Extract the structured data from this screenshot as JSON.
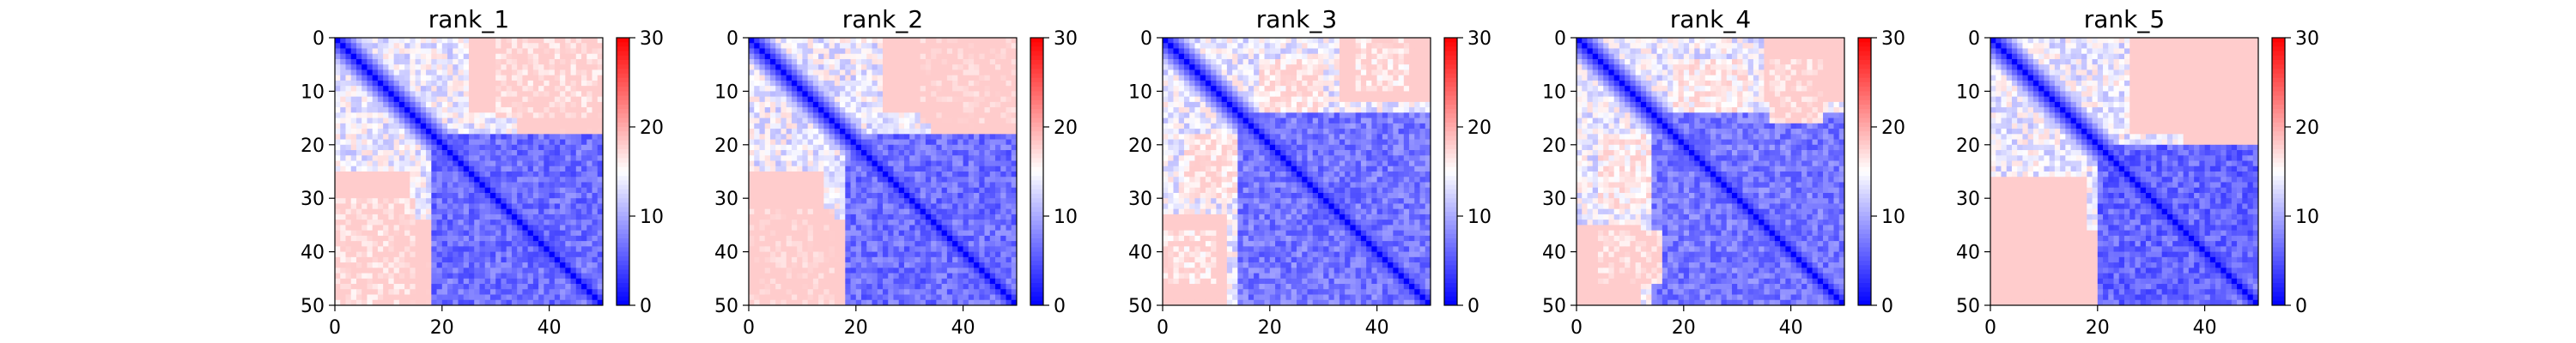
{
  "chart_data": [
    {
      "type": "heatmap",
      "title": "rank_1",
      "x_ticks": [
        "0",
        "20",
        "40"
      ],
      "y_ticks": [
        "0",
        "10",
        "20",
        "30",
        "40",
        "50"
      ],
      "xlim": [
        0,
        50
      ],
      "ylim": [
        0,
        50
      ],
      "n": 50,
      "colorbar": {
        "ticks": [
          "0",
          "10",
          "20",
          "30"
        ],
        "range": [
          0,
          30
        ],
        "colormap": "bwr"
      },
      "blocks": [
        {
          "rows": [
            0,
            14
          ],
          "cols": [
            25,
            50
          ],
          "value": 24
        },
        {
          "rows": [
            14,
            20
          ],
          "cols": [
            34,
            50
          ],
          "value": 20
        },
        {
          "rows": [
            18,
            46
          ],
          "cols": [
            20,
            50
          ],
          "value": 6.5
        },
        {
          "rows": [
            30,
            50
          ],
          "cols": [
            0,
            15
          ],
          "value": 18
        }
      ],
      "notes": "pairwise distance matrix; diagonal near 0"
    },
    {
      "type": "heatmap",
      "title": "rank_2",
      "x_ticks": [
        "0",
        "20",
        "40"
      ],
      "y_ticks": [
        "0",
        "10",
        "20",
        "30",
        "40",
        "50"
      ],
      "xlim": [
        0,
        50
      ],
      "ylim": [
        0,
        50
      ],
      "n": 50,
      "colorbar": {
        "ticks": [
          "0",
          "10",
          "20",
          "30"
        ],
        "range": [
          0,
          30
        ],
        "colormap": "bwr"
      },
      "blocks": [
        {
          "rows": [
            0,
            14
          ],
          "cols": [
            25,
            50
          ],
          "value": 24
        },
        {
          "rows": [
            14,
            20
          ],
          "cols": [
            34,
            50
          ],
          "value": 20
        },
        {
          "rows": [
            18,
            48
          ],
          "cols": [
            20,
            50
          ],
          "value": 6.5
        },
        {
          "rows": [
            32,
            50
          ],
          "cols": [
            0,
            16
          ],
          "value": 19
        }
      ]
    },
    {
      "type": "heatmap",
      "title": "rank_3",
      "x_ticks": [
        "0",
        "20",
        "40"
      ],
      "y_ticks": [
        "0",
        "10",
        "20",
        "30",
        "40",
        "50"
      ],
      "xlim": [
        0,
        50
      ],
      "ylim": [
        0,
        50
      ],
      "n": 50,
      "colorbar": {
        "ticks": [
          "0",
          "10",
          "20",
          "30"
        ],
        "range": [
          0,
          30
        ],
        "colormap": "bwr"
      },
      "blocks": [
        {
          "rows": [
            0,
            12
          ],
          "cols": [
            33,
            50
          ],
          "value": 23
        },
        {
          "rows": [
            4,
            14
          ],
          "cols": [
            18,
            30
          ],
          "value": 17
        },
        {
          "rows": [
            14,
            48
          ],
          "cols": [
            16,
            50
          ],
          "value": 7
        },
        {
          "rows": [
            36,
            46
          ],
          "cols": [
            0,
            10
          ],
          "value": 17
        }
      ]
    },
    {
      "type": "heatmap",
      "title": "rank_4",
      "x_ticks": [
        "0",
        "20",
        "40"
      ],
      "y_ticks": [
        "0",
        "10",
        "20",
        "30",
        "40",
        "50"
      ],
      "xlim": [
        0,
        50
      ],
      "ylim": [
        0,
        50
      ],
      "n": 50,
      "colorbar": {
        "ticks": [
          "0",
          "10",
          "20",
          "30"
        ],
        "range": [
          0,
          30
        ],
        "colormap": "bwr"
      },
      "blocks": [
        {
          "rows": [
            0,
            12
          ],
          "cols": [
            35,
            50
          ],
          "value": 22
        },
        {
          "rows": [
            4,
            16
          ],
          "cols": [
            18,
            32
          ],
          "value": 16
        },
        {
          "rows": [
            14,
            48
          ],
          "cols": [
            16,
            50
          ],
          "value": 7
        },
        {
          "rows": [
            36,
            46
          ],
          "cols": [
            4,
            16
          ],
          "value": 18
        }
      ]
    },
    {
      "type": "heatmap",
      "title": "rank_5",
      "x_ticks": [
        "0",
        "20",
        "40"
      ],
      "y_ticks": [
        "0",
        "10",
        "20",
        "30",
        "40",
        "50"
      ],
      "xlim": [
        0,
        50
      ],
      "ylim": [
        0,
        50
      ],
      "n": 50,
      "colorbar": {
        "ticks": [
          "0",
          "10",
          "20",
          "30"
        ],
        "range": [
          0,
          30
        ],
        "colormap": "bwr"
      },
      "blocks": [
        {
          "rows": [
            0,
            16
          ],
          "cols": [
            28,
            50
          ],
          "value": 25
        },
        {
          "rows": [
            16,
            24
          ],
          "cols": [
            36,
            50
          ],
          "value": 21
        },
        {
          "rows": [
            20,
            46
          ],
          "cols": [
            22,
            50
          ],
          "value": 6
        },
        {
          "rows": [
            26,
            50
          ],
          "cols": [
            0,
            18
          ],
          "value": 21
        }
      ]
    }
  ]
}
